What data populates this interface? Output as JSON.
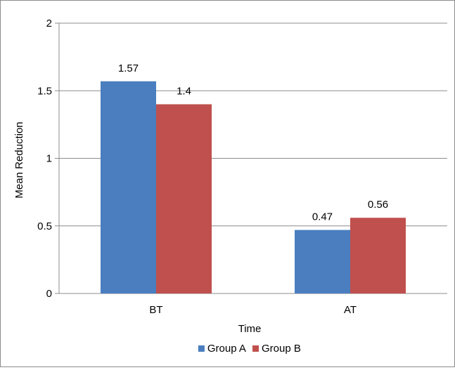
{
  "chart_data": {
    "type": "bar",
    "title": "",
    "xlabel": "Time",
    "ylabel": "Mean Reduction",
    "categories": [
      "BT",
      "AT"
    ],
    "series": [
      {
        "name": "Group A",
        "values": [
          1.57,
          0.47
        ],
        "color": "#4a7ebf"
      },
      {
        "name": "Group B",
        "values": [
          1.4,
          0.56
        ],
        "color": "#c0504d"
      }
    ],
    "value_labels": [
      [
        "1.57",
        "0.47"
      ],
      [
        "1.4",
        "0.56"
      ]
    ],
    "ylim": [
      0,
      2
    ],
    "yticks": [
      0,
      0.5,
      1,
      1.5,
      2
    ],
    "ytick_labels": [
      "0",
      "0.5",
      "1",
      "1.5",
      "2"
    ],
    "grid": true,
    "legend_position": "bottom"
  }
}
